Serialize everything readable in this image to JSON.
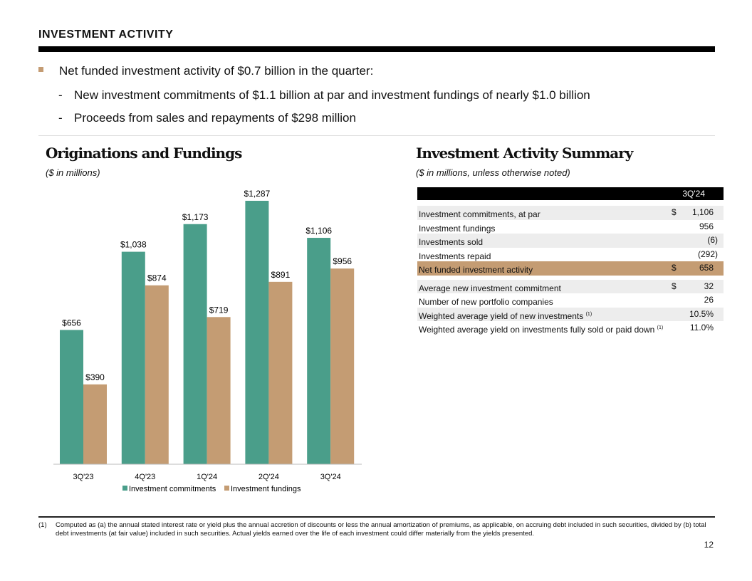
{
  "header": {
    "title": "INVESTMENT ACTIVITY"
  },
  "bullets": {
    "main": "Net funded investment activity of $0.7 billion in the quarter:",
    "subs": [
      {
        "dash": "-",
        "text": "New investment commitments of $1.1 billion at par and investment fundings of nearly $1.0 billion"
      },
      {
        "dash": "-",
        "text": "Proceeds from sales and repayments of $298 million"
      }
    ]
  },
  "left": {
    "title": "Originations and Fundings",
    "subtitle": "($ in millions)"
  },
  "right": {
    "title": "Investment Activity Summary",
    "subtitle": "($ in millions, unless otherwise noted)"
  },
  "table": {
    "column": "3Q'24",
    "rows": [
      {
        "label": "Investment commitments, at par",
        "sup": "",
        "cur": "$",
        "value": "1,106",
        "style": "g"
      },
      {
        "label": "Investment fundings",
        "sup": "",
        "cur": "",
        "value": "956",
        "style": ""
      },
      {
        "label": "Investments sold",
        "sup": "",
        "cur": "",
        "value": "(6)",
        "style": "g"
      },
      {
        "label": "Investments repaid",
        "sup": "",
        "cur": "",
        "value": "(292)",
        "style": ""
      },
      {
        "label": "Net funded investment activity",
        "sup": "",
        "cur": "$",
        "value": "658",
        "style": "net"
      },
      {
        "label": "Average new investment commitment",
        "sup": "",
        "cur": "$",
        "value": "32",
        "style": "g"
      },
      {
        "label": "Number of new portfolio companies",
        "sup": "",
        "cur": "",
        "value": "26",
        "style": ""
      },
      {
        "label": "Weighted average yield of new investments",
        "sup": "(1)",
        "cur": "",
        "value": "10.5%",
        "style": "g"
      },
      {
        "label": "Weighted average yield on investments fully sold or paid down",
        "sup": "(1)",
        "cur": "",
        "value": "11.0%",
        "style": ""
      }
    ]
  },
  "chart_data": {
    "type": "bar",
    "categories": [
      "3Q'23",
      "4Q'23",
      "1Q'24",
      "2Q'24",
      "3Q'24"
    ],
    "series": [
      {
        "name": "Investment commitments",
        "color": "#4a9e8a",
        "values": [
          656,
          1038,
          1173,
          1287,
          1106
        ],
        "labels": [
          "$656",
          "$1,038",
          "$1,173",
          "$1,287",
          "$1,106"
        ]
      },
      {
        "name": "Investment fundings",
        "color": "#c49c73",
        "values": [
          390,
          874,
          719,
          891,
          956
        ],
        "labels": [
          "$390",
          "$874",
          "$719",
          "$891",
          "$956"
        ]
      }
    ],
    "ylim": [
      0,
      1287
    ],
    "legend": "bottom"
  },
  "footnote": {
    "num": "(1)",
    "text": "Computed as (a) the annual stated interest rate or yield plus the annual accretion of discounts or less the annual amortization of premiums, as applicable, on accruing debt included in such securities, divided by (b) total debt investments (at fair value) included in such securities. Actual yields earned over the life of each investment could differ materially from the yields presented."
  },
  "page_number": "12"
}
